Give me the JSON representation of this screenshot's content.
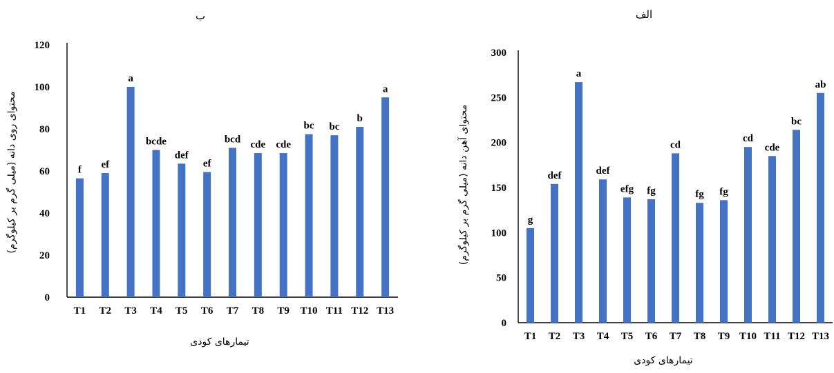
{
  "colors": {
    "bar": "#4472C4",
    "axis": "#000000",
    "text": "#000000"
  },
  "chart_data": [
    {
      "type": "bar",
      "panel": "left",
      "title": "ب",
      "xlabel": "تیمارهای کودی",
      "ylabel": "محتوای روی دانه (میلی گرم بر کیلوگرم)",
      "ylim": [
        0,
        120
      ],
      "yticks": [
        0,
        20,
        40,
        60,
        80,
        100,
        120
      ],
      "categories": [
        "T1",
        "T2",
        "T3",
        "T4",
        "T5",
        "T6",
        "T7",
        "T8",
        "T9",
        "T10",
        "T11",
        "T12",
        "T13"
      ],
      "values": [
        56.5,
        59,
        100,
        70,
        63.5,
        59.5,
        71,
        68.5,
        68.5,
        77.5,
        77,
        81,
        95
      ],
      "letters": [
        "f",
        "ef",
        "a",
        "bcde",
        "def",
        "ef",
        "bcd",
        "cde",
        "cde",
        "bc",
        "bc",
        "b",
        "a"
      ]
    },
    {
      "type": "bar",
      "panel": "right",
      "title": "الف",
      "xlabel": "تیمارهای کودی",
      "ylabel": "محتوای آهن دانه (میلی گرم بر کیلوگرم)",
      "ylim": [
        0,
        300
      ],
      "yticks": [
        0,
        50,
        100,
        150,
        200,
        250,
        300
      ],
      "categories": [
        "T1",
        "T2",
        "T3",
        "T4",
        "T5",
        "T6",
        "T7",
        "T8",
        "T9",
        "T10",
        "T11",
        "T12",
        "T13"
      ],
      "values": [
        105,
        154,
        267,
        159,
        139,
        137,
        188,
        133,
        136,
        195,
        185,
        214,
        255
      ],
      "letters": [
        "g",
        "def",
        "a",
        "def",
        "efg",
        "fg",
        "cd",
        "fg",
        "fg",
        "cd",
        "cde",
        "bc",
        "ab"
      ]
    }
  ]
}
